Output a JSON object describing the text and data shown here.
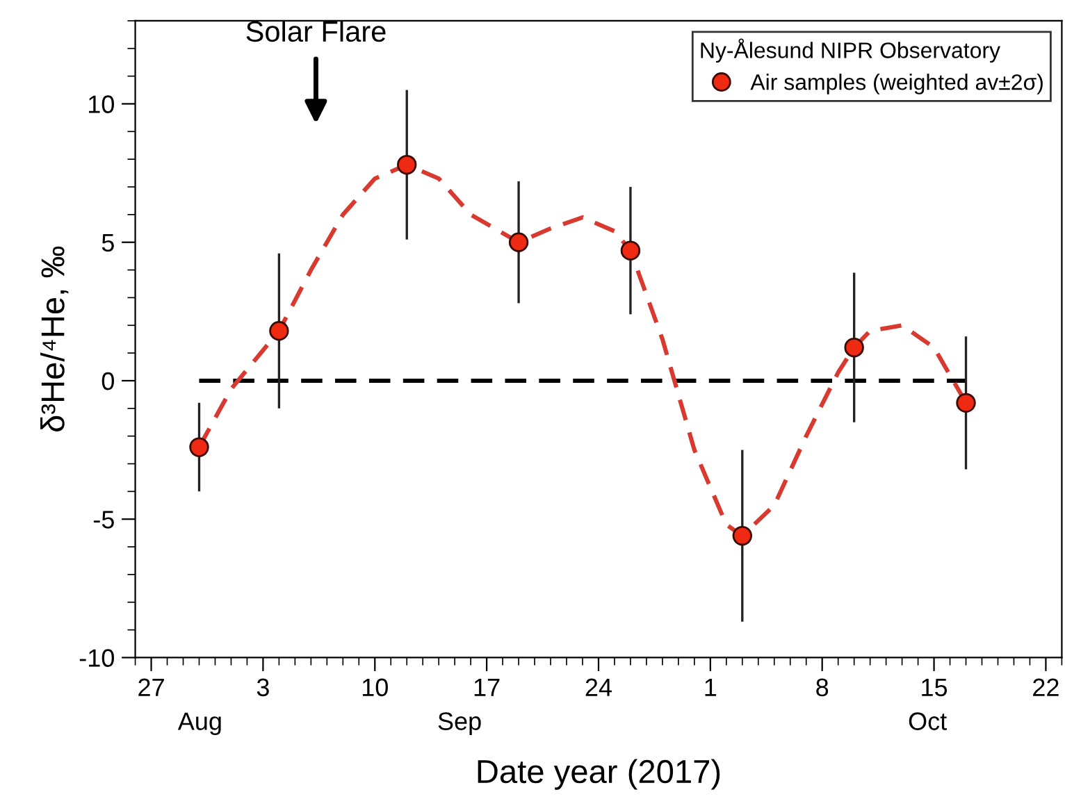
{
  "chart_data": {
    "type": "scatter",
    "xlabel": "Date year (2017)",
    "ylabel": "δ³He/⁴He, ‰",
    "legend_title": "Ny-Ålesund NIPR Observatory",
    "legend": "top right",
    "marker": "circle",
    "grid": false,
    "xlim": [
      "2017-08-26",
      "2017-10-23"
    ],
    "xticks": [
      {
        "value": "2017-08-27",
        "label": "27"
      },
      {
        "value": "2017-09-03",
        "label": "3"
      },
      {
        "value": "2017-09-10",
        "label": "10"
      },
      {
        "value": "2017-09-17",
        "label": "17"
      },
      {
        "value": "2017-09-24",
        "label": "24"
      },
      {
        "value": "2017-10-01",
        "label": "1"
      },
      {
        "value": "2017-10-08",
        "label": "8"
      },
      {
        "value": "2017-10-15",
        "label": "15"
      },
      {
        "value": "2017-10-22",
        "label": "22"
      }
    ],
    "ylim": [
      -10,
      13
    ],
    "yticks": [
      -10,
      -5,
      0,
      5,
      10
    ],
    "annotations": [
      "Solar Flare",
      "Aug",
      "Sep",
      "Oct"
    ],
    "series": [
      {
        "type": "line",
        "marker": "none",
        "color": "#000000",
        "line_style": "dashed",
        "x": [
          "2017-08-30",
          "2017-10-17"
        ],
        "values": [
          0,
          0
        ]
      },
      {
        "type": "line",
        "marker": "none",
        "color": "#d93a30",
        "line_style": "dashed",
        "x": [
          "2017-08-30",
          "2017-09-01",
          "2017-09-04",
          "2017-09-06",
          "2017-09-08",
          "2017-09-10",
          "2017-09-12",
          "2017-09-14",
          "2017-09-16",
          "2017-09-19",
          "2017-09-21",
          "2017-09-23",
          "2017-09-25",
          "2017-09-26",
          "2017-09-28",
          "2017-09-30",
          "2017-10-02",
          "2017-10-03",
          "2017-10-05",
          "2017-10-07",
          "2017-10-09",
          "2017-10-10",
          "2017-10-11",
          "2017-10-13",
          "2017-10-15",
          "2017-10-17"
        ],
        "values": [
          -2.4,
          -0.3,
          1.8,
          4.0,
          6.0,
          7.3,
          7.8,
          7.3,
          6.0,
          5.0,
          5.5,
          5.9,
          5.4,
          4.7,
          1.5,
          -2.5,
          -5.2,
          -5.6,
          -4.5,
          -2.0,
          0.3,
          1.2,
          1.8,
          2.0,
          1.2,
          -0.8
        ]
      },
      {
        "name": "Air samples (weighted av±2σ)",
        "color": "#ee2a12",
        "x": [
          "2017-08-30",
          "2017-09-04",
          "2017-09-12",
          "2017-09-19",
          "2017-09-26",
          "2017-10-03",
          "2017-10-10",
          "2017-10-17"
        ],
        "values": [
          -2.4,
          1.8,
          7.8,
          5.0,
          4.7,
          -5.6,
          1.2,
          -0.8
        ],
        "errors": [
          1.6,
          2.8,
          2.7,
          2.2,
          2.3,
          3.1,
          2.7,
          2.4
        ]
      }
    ]
  }
}
